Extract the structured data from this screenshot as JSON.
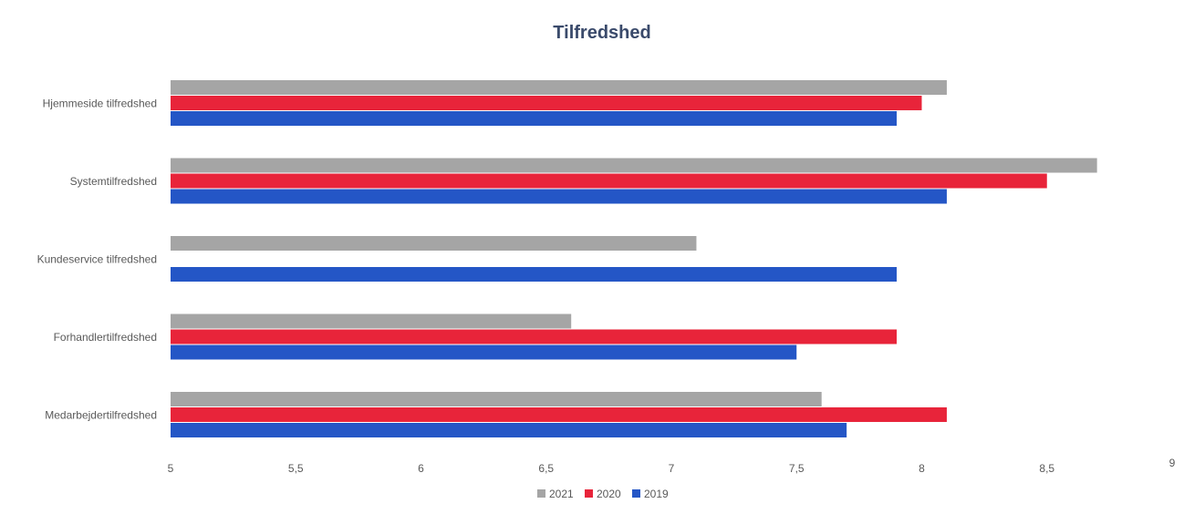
{
  "chart_data": {
    "type": "bar",
    "orientation": "horizontal",
    "title": "Tilfredshed",
    "xlabel": "",
    "ylabel": "",
    "xlim": [
      5,
      9
    ],
    "x_ticks": [
      "5",
      "5,5",
      "6",
      "6,5",
      "7",
      "7,5",
      "8",
      "8,5",
      "9"
    ],
    "x_tick_values": [
      5,
      5.5,
      6,
      6.5,
      7,
      7.5,
      8,
      8.5,
      9
    ],
    "grid": false,
    "legend_position": "bottom",
    "categories": [
      "Hjemmeside tilfredshed",
      "Systemtilfredshed",
      "Kundeservice tilfredshed",
      "Forhandlertilfredshed",
      "Medarbejdertilfredshed"
    ],
    "series": [
      {
        "name": "2021",
        "color": "#a5a5a5",
        "values": [
          8.1,
          8.7,
          7.1,
          6.6,
          7.6
        ]
      },
      {
        "name": "2020",
        "color": "#e8243a",
        "values": [
          8.0,
          8.5,
          null,
          7.9,
          8.1
        ]
      },
      {
        "name": "2019",
        "color": "#2456c6",
        "values": [
          7.9,
          8.1,
          7.9,
          7.5,
          7.7
        ]
      }
    ]
  }
}
